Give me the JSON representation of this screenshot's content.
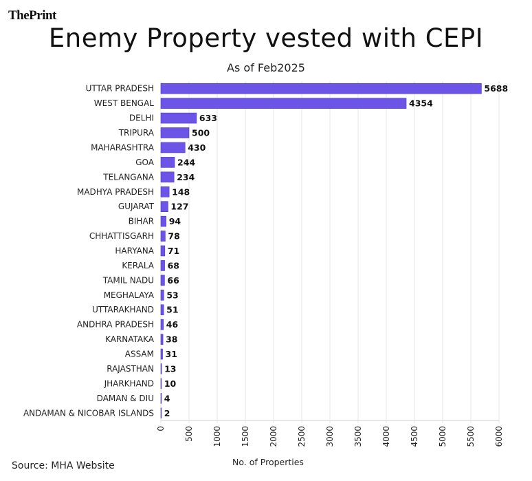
{
  "logo": {
    "text": "ThePrint"
  },
  "source": "Source: MHA Website",
  "chart_data": {
    "type": "bar",
    "orientation": "horizontal",
    "title": "Enemy Property vested with CEPI",
    "subtitle": "As of Feb2025",
    "xlabel": "No. of Properties",
    "ylabel": "",
    "xlim": [
      0,
      6000
    ],
    "xticks": [
      "0",
      "500",
      "1000",
      "1500",
      "2000",
      "2500",
      "3000",
      "3500",
      "4000",
      "4500",
      "5000",
      "5500",
      "6000"
    ],
    "grid": true,
    "bar_color": "#6c55e6",
    "categories": [
      "UTTAR PRADESH",
      "WEST BENGAL",
      "DELHI",
      "TRIPURA",
      "MAHARASHTRA",
      "GOA",
      "TELANGANA",
      "MADHYA PRADESH",
      "GUJARAT",
      "BIHAR",
      "CHHATTISGARH",
      "HARYANA",
      "KERALA",
      "TAMIL NADU",
      "MEGHALAYA",
      "UTTARAKHAND",
      "ANDHRA PRADESH",
      "KARNATAKA",
      "ASSAM",
      "RAJASTHAN",
      "JHARKHAND",
      "DAMAN & DIU",
      "ANDAMAN & NICOBAR ISLANDS"
    ],
    "values": [
      5688,
      4354,
      633,
      500,
      430,
      244,
      234,
      148,
      127,
      94,
      78,
      71,
      68,
      66,
      53,
      51,
      46,
      38,
      31,
      13,
      10,
      4,
      2
    ]
  }
}
